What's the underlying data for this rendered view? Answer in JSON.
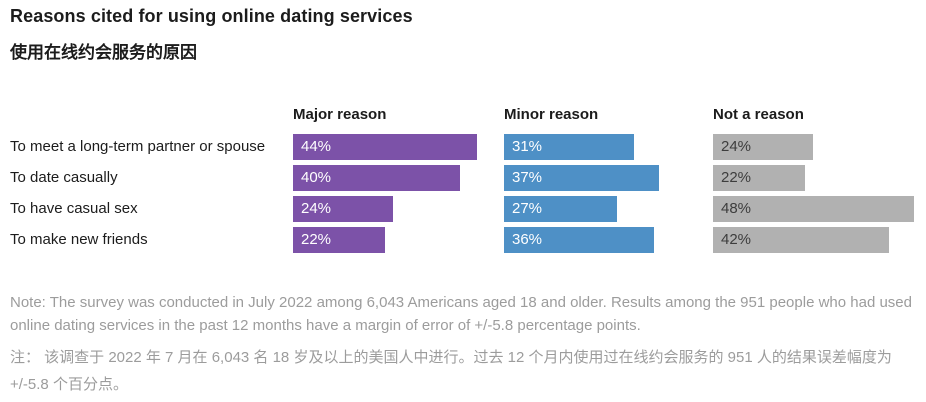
{
  "header": {
    "title_en": "Reasons cited for using online dating services",
    "title_zh": "使用在线约会服务的原因"
  },
  "chart_data": {
    "type": "bar",
    "orientation": "horizontal",
    "categories": [
      "To meet a long-term partner or spouse",
      "To date casually",
      "To have casual sex",
      "To make new friends"
    ],
    "series": [
      {
        "name": "Major reason",
        "color": "#7C52A8",
        "label_color": "#ffffff",
        "values": [
          44,
          40,
          24,
          22
        ]
      },
      {
        "name": "Minor reason",
        "color": "#4E90C6",
        "label_color": "#ffffff",
        "values": [
          31,
          37,
          27,
          36
        ]
      },
      {
        "name": "Not a reason",
        "color": "#B1B1B1",
        "label_color": "#3d3d3d",
        "values": [
          24,
          22,
          48,
          42
        ]
      }
    ],
    "value_suffix": "%",
    "xlim": [
      0,
      50
    ],
    "legend_position": "column-headers",
    "grid": false
  },
  "notes": {
    "note_en": "Note: The survey was conducted in July 2022 among 6,043 Americans aged 18 and older. Results among the 951 people who had used online dating services in the past 12 months have a margin of error of +/-5.8 percentage points.",
    "note_zh": "注： 该调查于 2022 年 7 月在 6,043 名 18 岁及以上的美国人中进行。过去 12 个月内使用过在线约会服务的 951 人的结果误差幅度为 +/-5.8 个百分点。"
  }
}
